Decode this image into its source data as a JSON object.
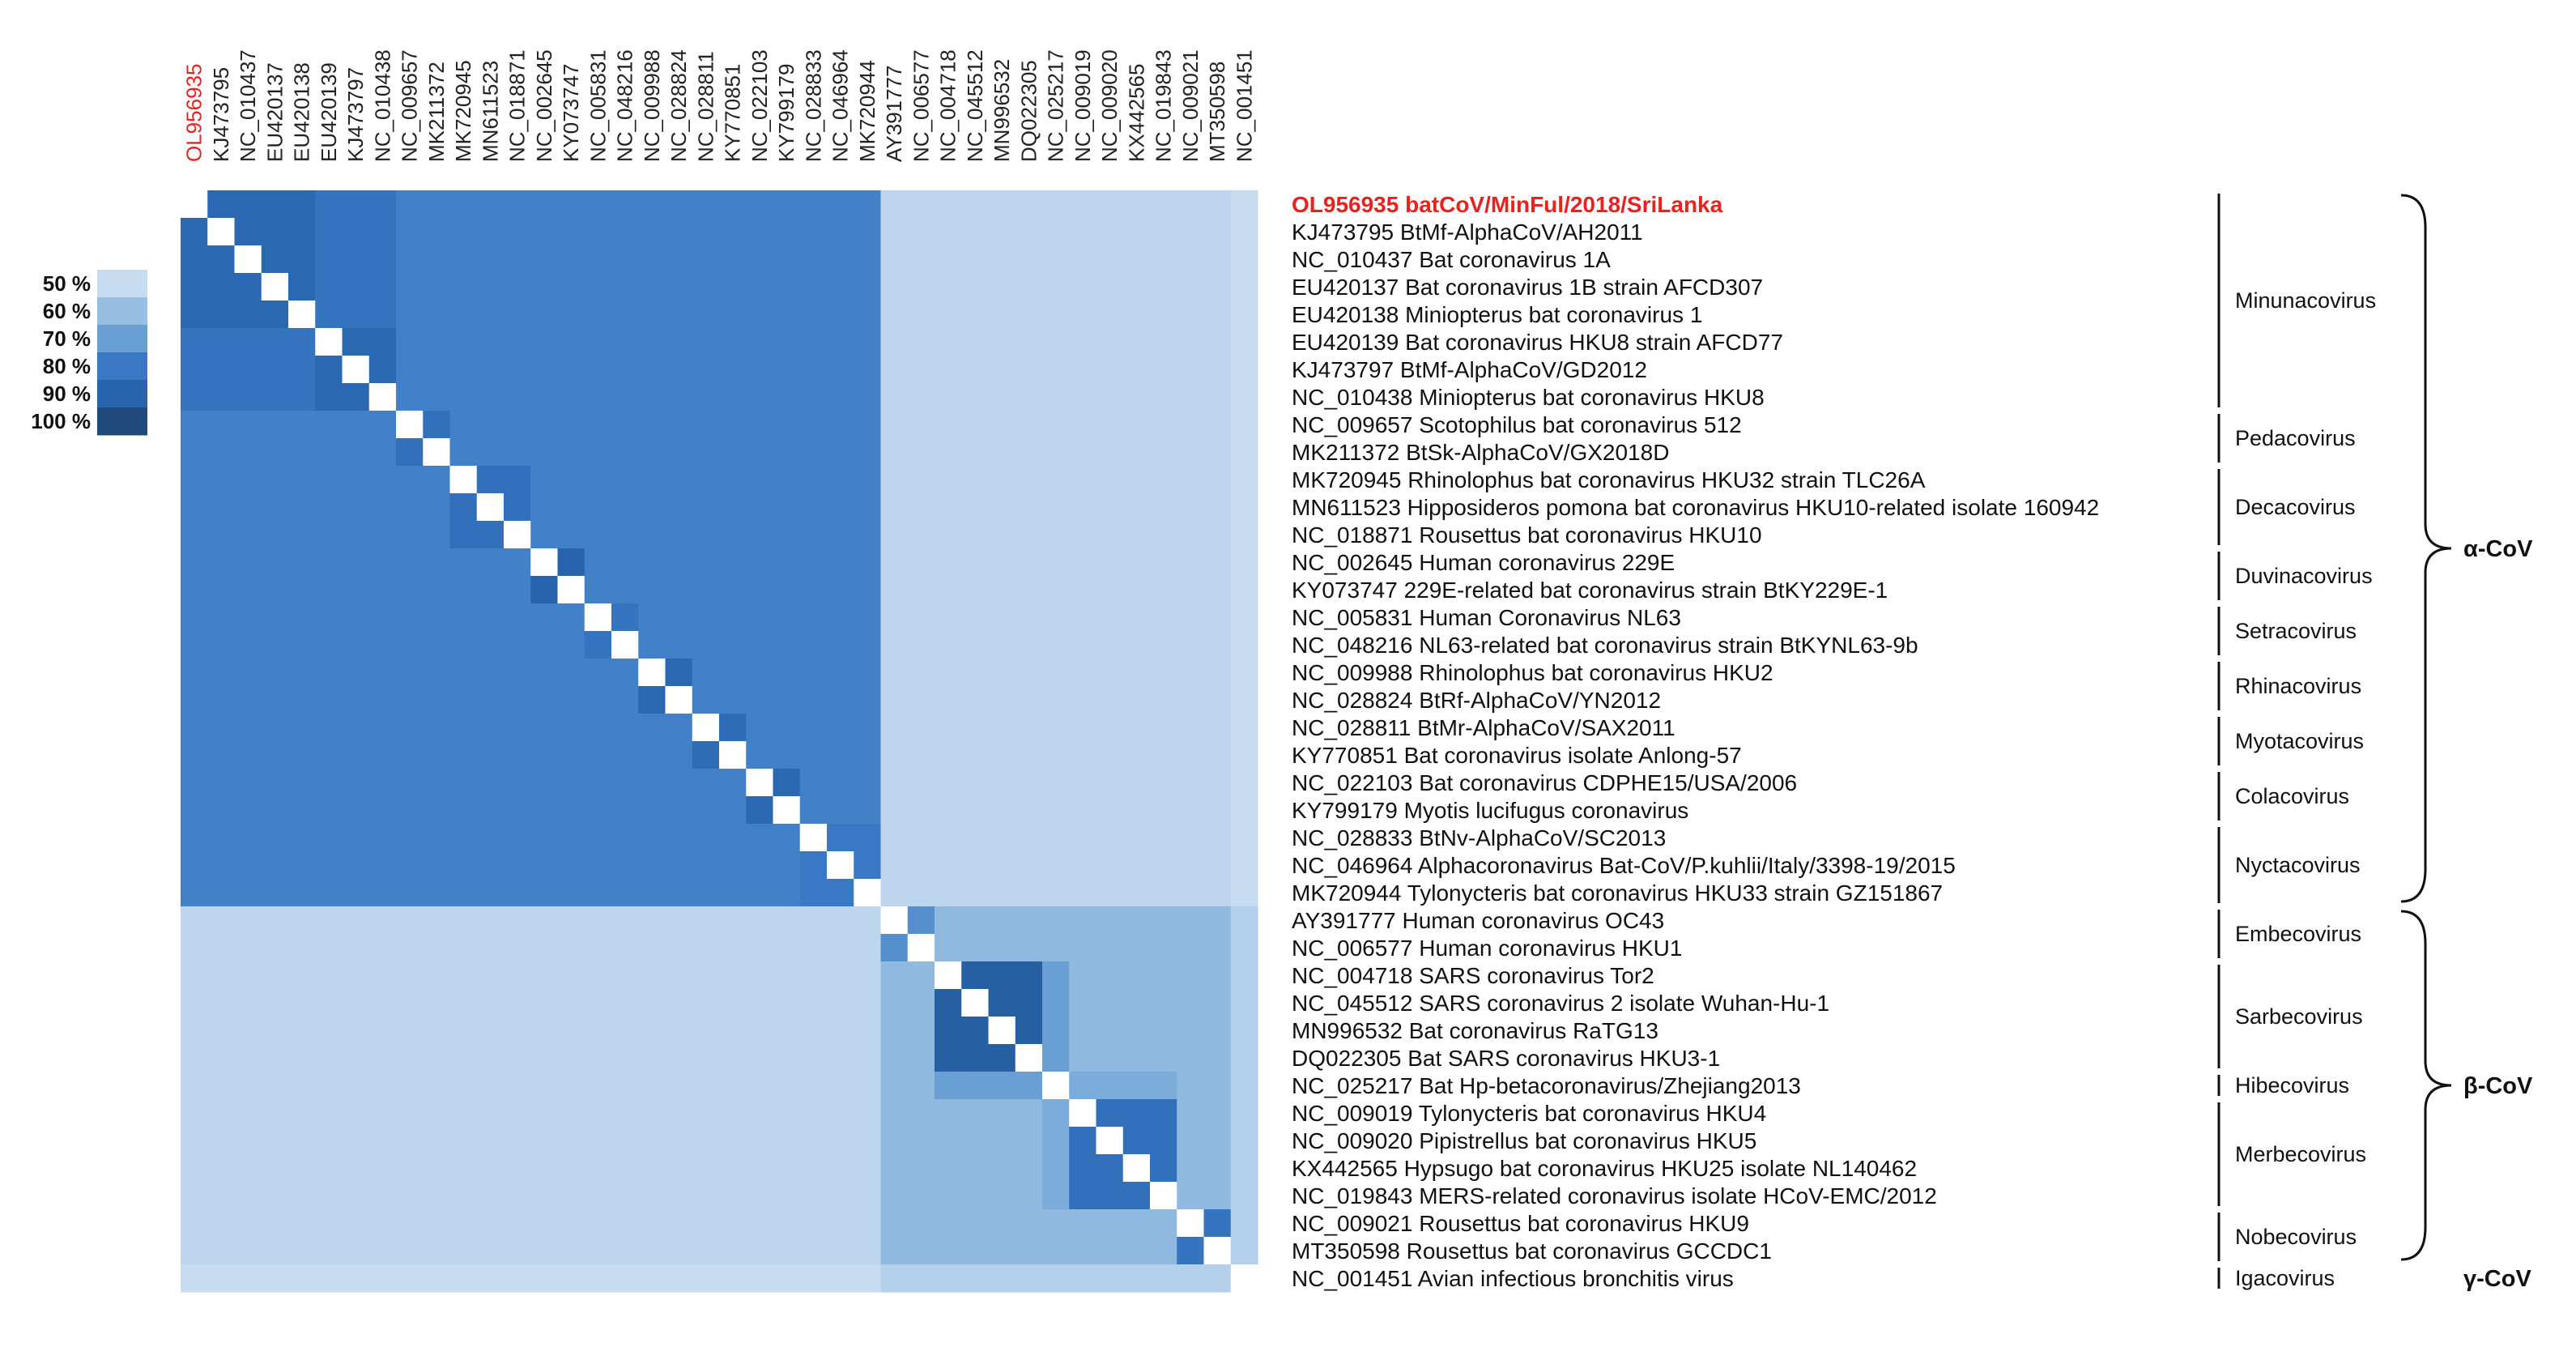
{
  "chart_data": {
    "type": "heatmap",
    "title": "",
    "value_unit": "% identity",
    "color_scale": {
      "legend_labels": [
        "50 %",
        "60 %",
        "70 %",
        "80 %",
        "90 %",
        "100 %"
      ],
      "legend_values": [
        50,
        60,
        70,
        80,
        90,
        100
      ],
      "colors": [
        "#c7dcf0",
        "#98bfe2",
        "#6a9fd3",
        "#3878c4",
        "#2864ad",
        "#214a7c"
      ],
      "diagonal_color": "#ffffff"
    },
    "highlight_color": "#e8221e",
    "column_labels": [
      "OL956935",
      "KJ473795",
      "NC_010437",
      "EU420137",
      "EU420138",
      "EU420139",
      "KJ473797",
      "NC_010438",
      "NC_009657",
      "MK211372",
      "MK720945",
      "MN611523",
      "NC_018871",
      "NC_002645",
      "KY073747",
      "NC_005831",
      "NC_048216",
      "NC_009988",
      "NC_028824",
      "NC_028811",
      "KY770851",
      "NC_022103",
      "KY799179",
      "NC_028833",
      "NC_046964",
      "MK720944",
      "AY391777",
      "NC_006577",
      "NC_004718",
      "NC_045512",
      "MN996532",
      "DQ022305",
      "NC_025217",
      "NC_009019",
      "NC_009020",
      "KX442565",
      "NC_019843",
      "NC_009021",
      "MT350598",
      "NC_001451"
    ],
    "row_labels": [
      "OL956935 batCoV/MinFul/2018/SriLanka",
      "KJ473795 BtMf-AlphaCoV/AH2011",
      "NC_010437 Bat coronavirus 1A",
      "EU420137 Bat coronavirus 1B strain AFCD307",
      "EU420138 Miniopterus bat coronavirus 1",
      "EU420139 Bat coronavirus HKU8 strain AFCD77",
      "KJ473797 BtMf-AlphaCoV/GD2012",
      "NC_010438 Miniopterus bat coronavirus HKU8",
      "NC_009657 Scotophilus bat coronavirus 512",
      "MK211372 BtSk-AlphaCoV/GX2018D",
      "MK720945 Rhinolophus bat coronavirus HKU32 strain TLC26A",
      "MN611523 Hipposideros pomona bat coronavirus HKU10-related isolate 160942",
      "NC_018871 Rousettus bat coronavirus HKU10",
      "NC_002645 Human coronavirus 229E",
      "KY073747 229E-related bat coronavirus strain BtKY229E-1",
      "NC_005831 Human Coronavirus NL63",
      "NC_048216 NL63-related bat coronavirus strain BtKYNL63-9b",
      "NC_009988 Rhinolophus bat coronavirus HKU2",
      "NC_028824 BtRf-AlphaCoV/YN2012",
      "NC_028811 BtMr-AlphaCoV/SAX2011",
      "KY770851 Bat coronavirus isolate Anlong-57",
      "NC_022103 Bat coronavirus CDPHE15/USA/2006",
      "KY799179 Myotis lucifugus coronavirus",
      "NC_028833 BtNv-AlphaCoV/SC2013",
      "NC_046964 Alphacoronavirus Bat-CoV/P.kuhlii/Italy/3398-19/2015",
      "MK720944 Tylonycteris bat coronavirus HKU33 strain GZ151867",
      "AY391777 Human coronavirus OC43",
      "NC_006577 Human coronavirus HKU1",
      "NC_004718 SARS coronavirus Tor2",
      "NC_045512 SARS coronavirus 2 isolate Wuhan-Hu-1",
      "MN996532 Bat coronavirus RaTG13",
      "DQ022305 Bat SARS coronavirus HKU3-1",
      "NC_025217 Bat Hp-betacoronavirus/Zhejiang2013",
      "NC_009019 Tylonycteris bat coronavirus HKU4",
      "NC_009020 Pipistrellus bat coronavirus HKU5",
      "KX442565 Hypsugo bat coronavirus HKU25 isolate NL140462",
      "NC_019843 MERS-related coronavirus isolate HCoV-EMC/2012",
      "NC_009021 Rousettus bat coronavirus HKU9",
      "MT350598 Rousettus bat coronavirus GCCDC1",
      "NC_001451 Avian infectious bronchitis virus"
    ],
    "subgenera": [
      {
        "name": "Minunacovirus",
        "rows": [
          0,
          7
        ]
      },
      {
        "name": "Pedacovirus",
        "rows": [
          8,
          9
        ]
      },
      {
        "name": "Decacovirus",
        "rows": [
          10,
          12
        ]
      },
      {
        "name": "Duvinacovirus",
        "rows": [
          13,
          14
        ]
      },
      {
        "name": "Setracovirus",
        "rows": [
          15,
          16
        ]
      },
      {
        "name": "Rhinacovirus",
        "rows": [
          17,
          18
        ]
      },
      {
        "name": "Myotacovirus",
        "rows": [
          19,
          20
        ]
      },
      {
        "name": "Colacovirus",
        "rows": [
          21,
          22
        ]
      },
      {
        "name": "Nyctacovirus",
        "rows": [
          23,
          25
        ]
      },
      {
        "name": "Embecovirus",
        "rows": [
          26,
          27
        ]
      },
      {
        "name": "Sarbecovirus",
        "rows": [
          28,
          31
        ]
      },
      {
        "name": "Hibecovirus",
        "rows": [
          32,
          32
        ]
      },
      {
        "name": "Merbecovirus",
        "rows": [
          33,
          36
        ]
      },
      {
        "name": "Nobecovirus",
        "rows": [
          37,
          38
        ]
      },
      {
        "name": "Igacovirus",
        "rows": [
          39,
          39
        ]
      }
    ],
    "genera": [
      {
        "name": "α-CoV",
        "rows": [
          0,
          25
        ],
        "bracket": true
      },
      {
        "name": "β-CoV",
        "rows": [
          26,
          38
        ],
        "bracket": true
      },
      {
        "name": "γ-CoV",
        "rows": [
          39,
          39
        ],
        "bracket": false
      }
    ],
    "similarity_rules": {
      "diagonal": 100,
      "alpha_clusters": [
        [
          0,
          4,
          88
        ],
        [
          5,
          7,
          88
        ],
        [
          8,
          9,
          84
        ],
        [
          10,
          12,
          84
        ],
        [
          13,
          14,
          90
        ],
        [
          15,
          16,
          82
        ],
        [
          17,
          18,
          88
        ],
        [
          19,
          20,
          86
        ],
        [
          21,
          22,
          88
        ],
        [
          23,
          25,
          80
        ]
      ],
      "alpha_alpha_default": 78,
      "alpha_alpha_minunacovirus": 82,
      "alpha_beta": 52,
      "alpha_gamma": 50,
      "beta_beta_default": 62,
      "beta_clusters": [
        [
          26,
          27,
          74
        ],
        [
          28,
          31,
          92
        ],
        [
          33,
          36,
          84
        ],
        [
          37,
          38,
          82
        ]
      ],
      "sarbeco_hibeco": 70,
      "merbeco_block": [
        [
          32,
          36,
          66
        ]
      ],
      "beta_gamma": 54
    }
  }
}
